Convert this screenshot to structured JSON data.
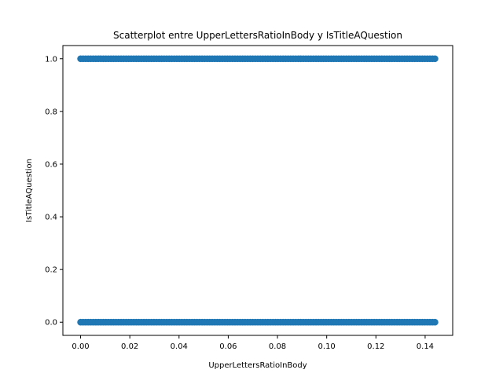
{
  "chart_data": {
    "type": "scatter",
    "title": "Scatterplot entre UpperLettersRatioInBody y IsTitleAQuestion",
    "xlabel": "UpperLettersRatioInBody",
    "ylabel": "IsTitleAQuestion",
    "xlim": [
      -0.0072,
      0.1512
    ],
    "ylim": [
      -0.05,
      1.05
    ],
    "xticks": [
      0.0,
      0.02,
      0.04,
      0.06,
      0.08,
      0.1,
      0.12,
      0.14
    ],
    "xtick_labels": [
      "0.00",
      "0.02",
      "0.04",
      "0.06",
      "0.08",
      "0.10",
      "0.12",
      "0.14"
    ],
    "yticks": [
      0.0,
      0.2,
      0.4,
      0.6,
      0.8,
      1.0
    ],
    "ytick_labels": [
      "0.0",
      "0.2",
      "0.4",
      "0.6",
      "0.8",
      "1.0"
    ],
    "grid": false,
    "point_color": "#1f77b4",
    "series": [
      {
        "y": 1,
        "x_min": 0.0,
        "x_max": 0.144
      },
      {
        "y": 0,
        "x_min": 0.0,
        "x_max": 0.144
      }
    ]
  }
}
